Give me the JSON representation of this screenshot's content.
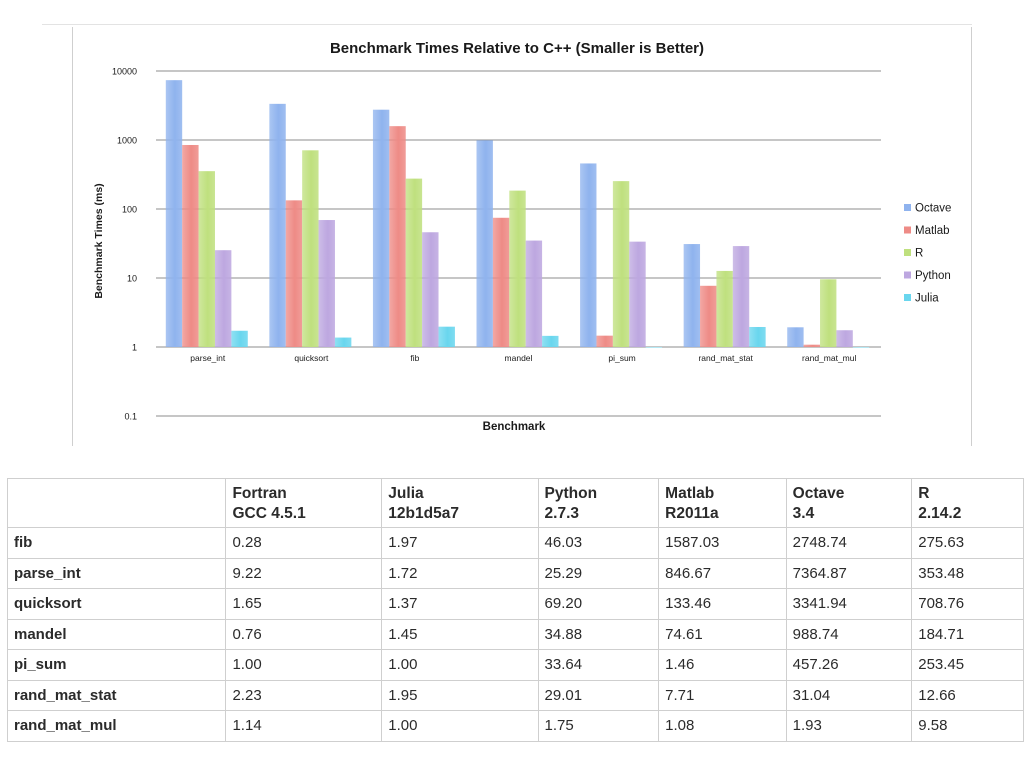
{
  "chart_data": {
    "type": "bar",
    "title": "Benchmark Times Relative to C++ (Smaller is Better)",
    "xlabel": "Benchmark",
    "ylabel": "Benchmark Times (ms)",
    "yscale": "log",
    "ylim": [
      0.1,
      10000
    ],
    "yticks": [
      "0.1",
      "1",
      "10",
      "100",
      "1000",
      "10000"
    ],
    "grid": true,
    "legend_position": "right",
    "categories": [
      "parse_int",
      "quicksort",
      "fib",
      "mandel",
      "pi_sum",
      "rand_mat_stat",
      "rand_mat_mul"
    ],
    "series": [
      {
        "name": "Octave",
        "color": "#8fb3ee",
        "values": [
          7364.87,
          3341.94,
          2748.74,
          988.74,
          457.26,
          31.04,
          1.93
        ]
      },
      {
        "name": "Matlab",
        "color": "#ee8b86",
        "values": [
          846.67,
          133.46,
          1587.03,
          74.61,
          1.46,
          7.71,
          1.08
        ]
      },
      {
        "name": "R",
        "color": "#bfe07e",
        "values": [
          353.48,
          708.76,
          275.63,
          184.71,
          253.45,
          12.66,
          9.58
        ]
      },
      {
        "name": "Python",
        "color": "#bda7e0",
        "values": [
          25.29,
          69.2,
          46.03,
          34.88,
          33.64,
          29.01,
          1.75
        ]
      },
      {
        "name": "Julia",
        "color": "#69d6ee",
        "values": [
          1.72,
          1.37,
          1.97,
          1.45,
          1.0,
          1.95,
          1.0
        ]
      }
    ]
  },
  "table": {
    "headers": [
      {
        "line1": "",
        "line2": ""
      },
      {
        "line1": "Fortran",
        "line2": "GCC 4.5.1"
      },
      {
        "line1": "Julia",
        "line2": "12b1d5a7"
      },
      {
        "line1": "Python",
        "line2": "2.7.3"
      },
      {
        "line1": "Matlab",
        "line2": "R2011a"
      },
      {
        "line1": "Octave",
        "line2": "3.4"
      },
      {
        "line1": "R",
        "line2": "2.14.2"
      }
    ],
    "rows": [
      {
        "name": "fib",
        "values": [
          "0.28",
          "1.97",
          "46.03",
          "1587.03",
          "2748.74",
          "275.63"
        ]
      },
      {
        "name": "parse_int",
        "values": [
          "9.22",
          "1.72",
          "25.29",
          "846.67",
          "7364.87",
          "353.48"
        ]
      },
      {
        "name": "quicksort",
        "values": [
          "1.65",
          "1.37",
          "69.20",
          "133.46",
          "3341.94",
          "708.76"
        ]
      },
      {
        "name": "mandel",
        "values": [
          "0.76",
          "1.45",
          "34.88",
          "74.61",
          "988.74",
          "184.71"
        ]
      },
      {
        "name": "pi_sum",
        "values": [
          "1.00",
          "1.00",
          "33.64",
          "1.46",
          "457.26",
          "253.45"
        ]
      },
      {
        "name": "rand_mat_stat",
        "values": [
          "2.23",
          "1.95",
          "29.01",
          "7.71",
          "31.04",
          "12.66"
        ]
      },
      {
        "name": "rand_mat_mul",
        "values": [
          "1.14",
          "1.00",
          "1.75",
          "1.08",
          "1.93",
          "9.58"
        ]
      }
    ]
  }
}
